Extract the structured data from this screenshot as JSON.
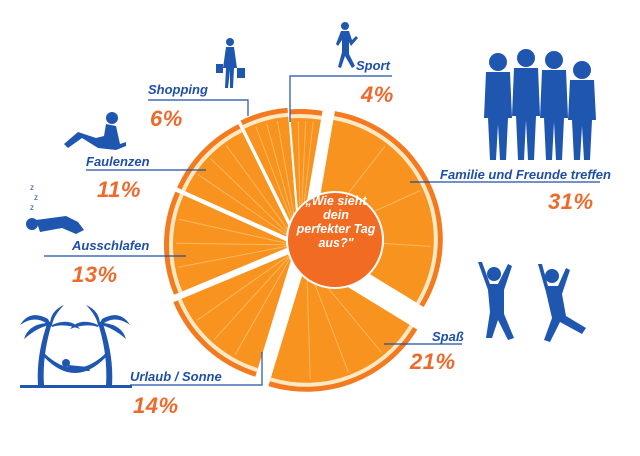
{
  "center_question": "„Wie sieht dein perfekter Tag aus?\"",
  "colors": {
    "label_blue": "#1f4fa8",
    "percent_orange": "#ee6a2c",
    "silhouette_blue": "#1f56b0",
    "orange_flesh": "#f7931e",
    "orange_peel": "#f47a20",
    "orange_pith": "#fde9c4",
    "center_circle": "#f26b22"
  },
  "icons": {
    "shopping": "shopping-woman-icon",
    "sport": "runner-icon",
    "family": "group-of-friends-icon",
    "faulenzen": "lounging-person-icon",
    "ausschlafen": "sleeping-person-icon",
    "urlaub": "hammock-palms-icon",
    "spass": "jumping-people-icon"
  },
  "chart_data": {
    "type": "pie",
    "title": "„Wie sieht dein perfekter Tag aus?\"",
    "categories": [
      "Sport",
      "Familie und Freunde treffen",
      "Spaß",
      "Urlaub / Sonne",
      "Ausschlafen",
      "Faulenzen",
      "Shopping"
    ],
    "values": [
      4,
      31,
      21,
      14,
      13,
      11,
      6
    ],
    "labels": [
      "4%",
      "31%",
      "21%",
      "14%",
      "13%",
      "11%",
      "6%"
    ],
    "legend": "none"
  }
}
